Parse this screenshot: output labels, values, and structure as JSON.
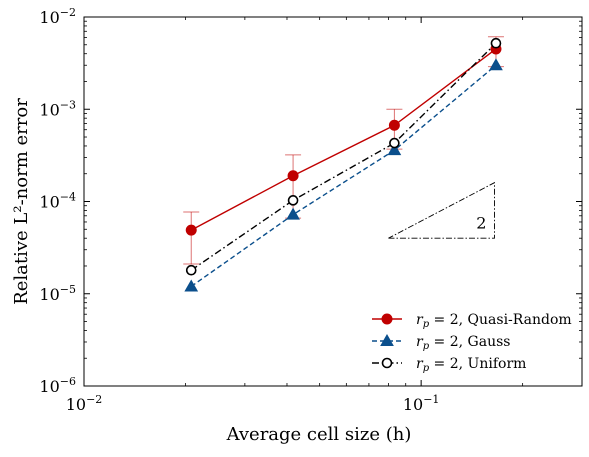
{
  "chart_data": {
    "type": "line",
    "xlabel": "Average cell size (h)",
    "ylabel": "Relative L²-norm error",
    "xscale": "log",
    "yscale": "log",
    "xlim": [
      0.01,
      0.3
    ],
    "ylim": [
      1e-06,
      0.01
    ],
    "xticks": [
      {
        "value": 0.01,
        "base": "10",
        "exp": "−2"
      },
      {
        "value": 0.1,
        "base": "10",
        "exp": "−1"
      }
    ],
    "yticks": [
      {
        "value": 1e-06,
        "base": "10",
        "exp": "−6"
      },
      {
        "value": 1e-05,
        "base": "10",
        "exp": "−5"
      },
      {
        "value": 0.0001,
        "base": "10",
        "exp": "−4"
      },
      {
        "value": 0.001,
        "base": "10",
        "exp": "−3"
      },
      {
        "value": 0.01,
        "base": "10",
        "exp": "−2"
      }
    ],
    "x": [
      0.0208,
      0.0417,
      0.0833,
      0.1667
    ],
    "series": [
      {
        "name": "r_p = 2, Quasi-Random",
        "legend_main": "r",
        "legend_sub": "p",
        "legend_rest": " = 2, Quasi-Random",
        "color": "#c00000",
        "linestyle": "solid",
        "marker": "circle-filled",
        "values": [
          4.9e-05,
          0.00019,
          0.00067,
          0.0045
        ],
        "error_low": [
          2.1e-05,
          6.6e-05,
          0.00037,
          0.0029
        ],
        "error_high": [
          7.7e-05,
          0.00032,
          0.001,
          0.0061
        ]
      },
      {
        "name": "r_p = 2, Gauss",
        "legend_main": "r",
        "legend_sub": "p",
        "legend_rest": " = 2, Gauss",
        "color": "#0b4f8c",
        "linestyle": "dashed",
        "marker": "triangle-filled",
        "values": [
          1.2e-05,
          7.2e-05,
          0.00036,
          0.003
        ]
      },
      {
        "name": "r_p = 2, Uniform",
        "legend_main": "r",
        "legend_sub": "p",
        "legend_rest": " = 2, Uniform",
        "color": "#000000",
        "linestyle": "dashdot",
        "marker": "circle-open",
        "values": [
          1.8e-05,
          0.000103,
          0.00043,
          0.0052
        ]
      }
    ],
    "slope_triangle": {
      "label": "2",
      "x_start": 0.08,
      "x_end": 0.165,
      "y_bottom": 4e-05,
      "y_top": 0.00016
    },
    "legend_position": "lower-right",
    "grid": false
  }
}
